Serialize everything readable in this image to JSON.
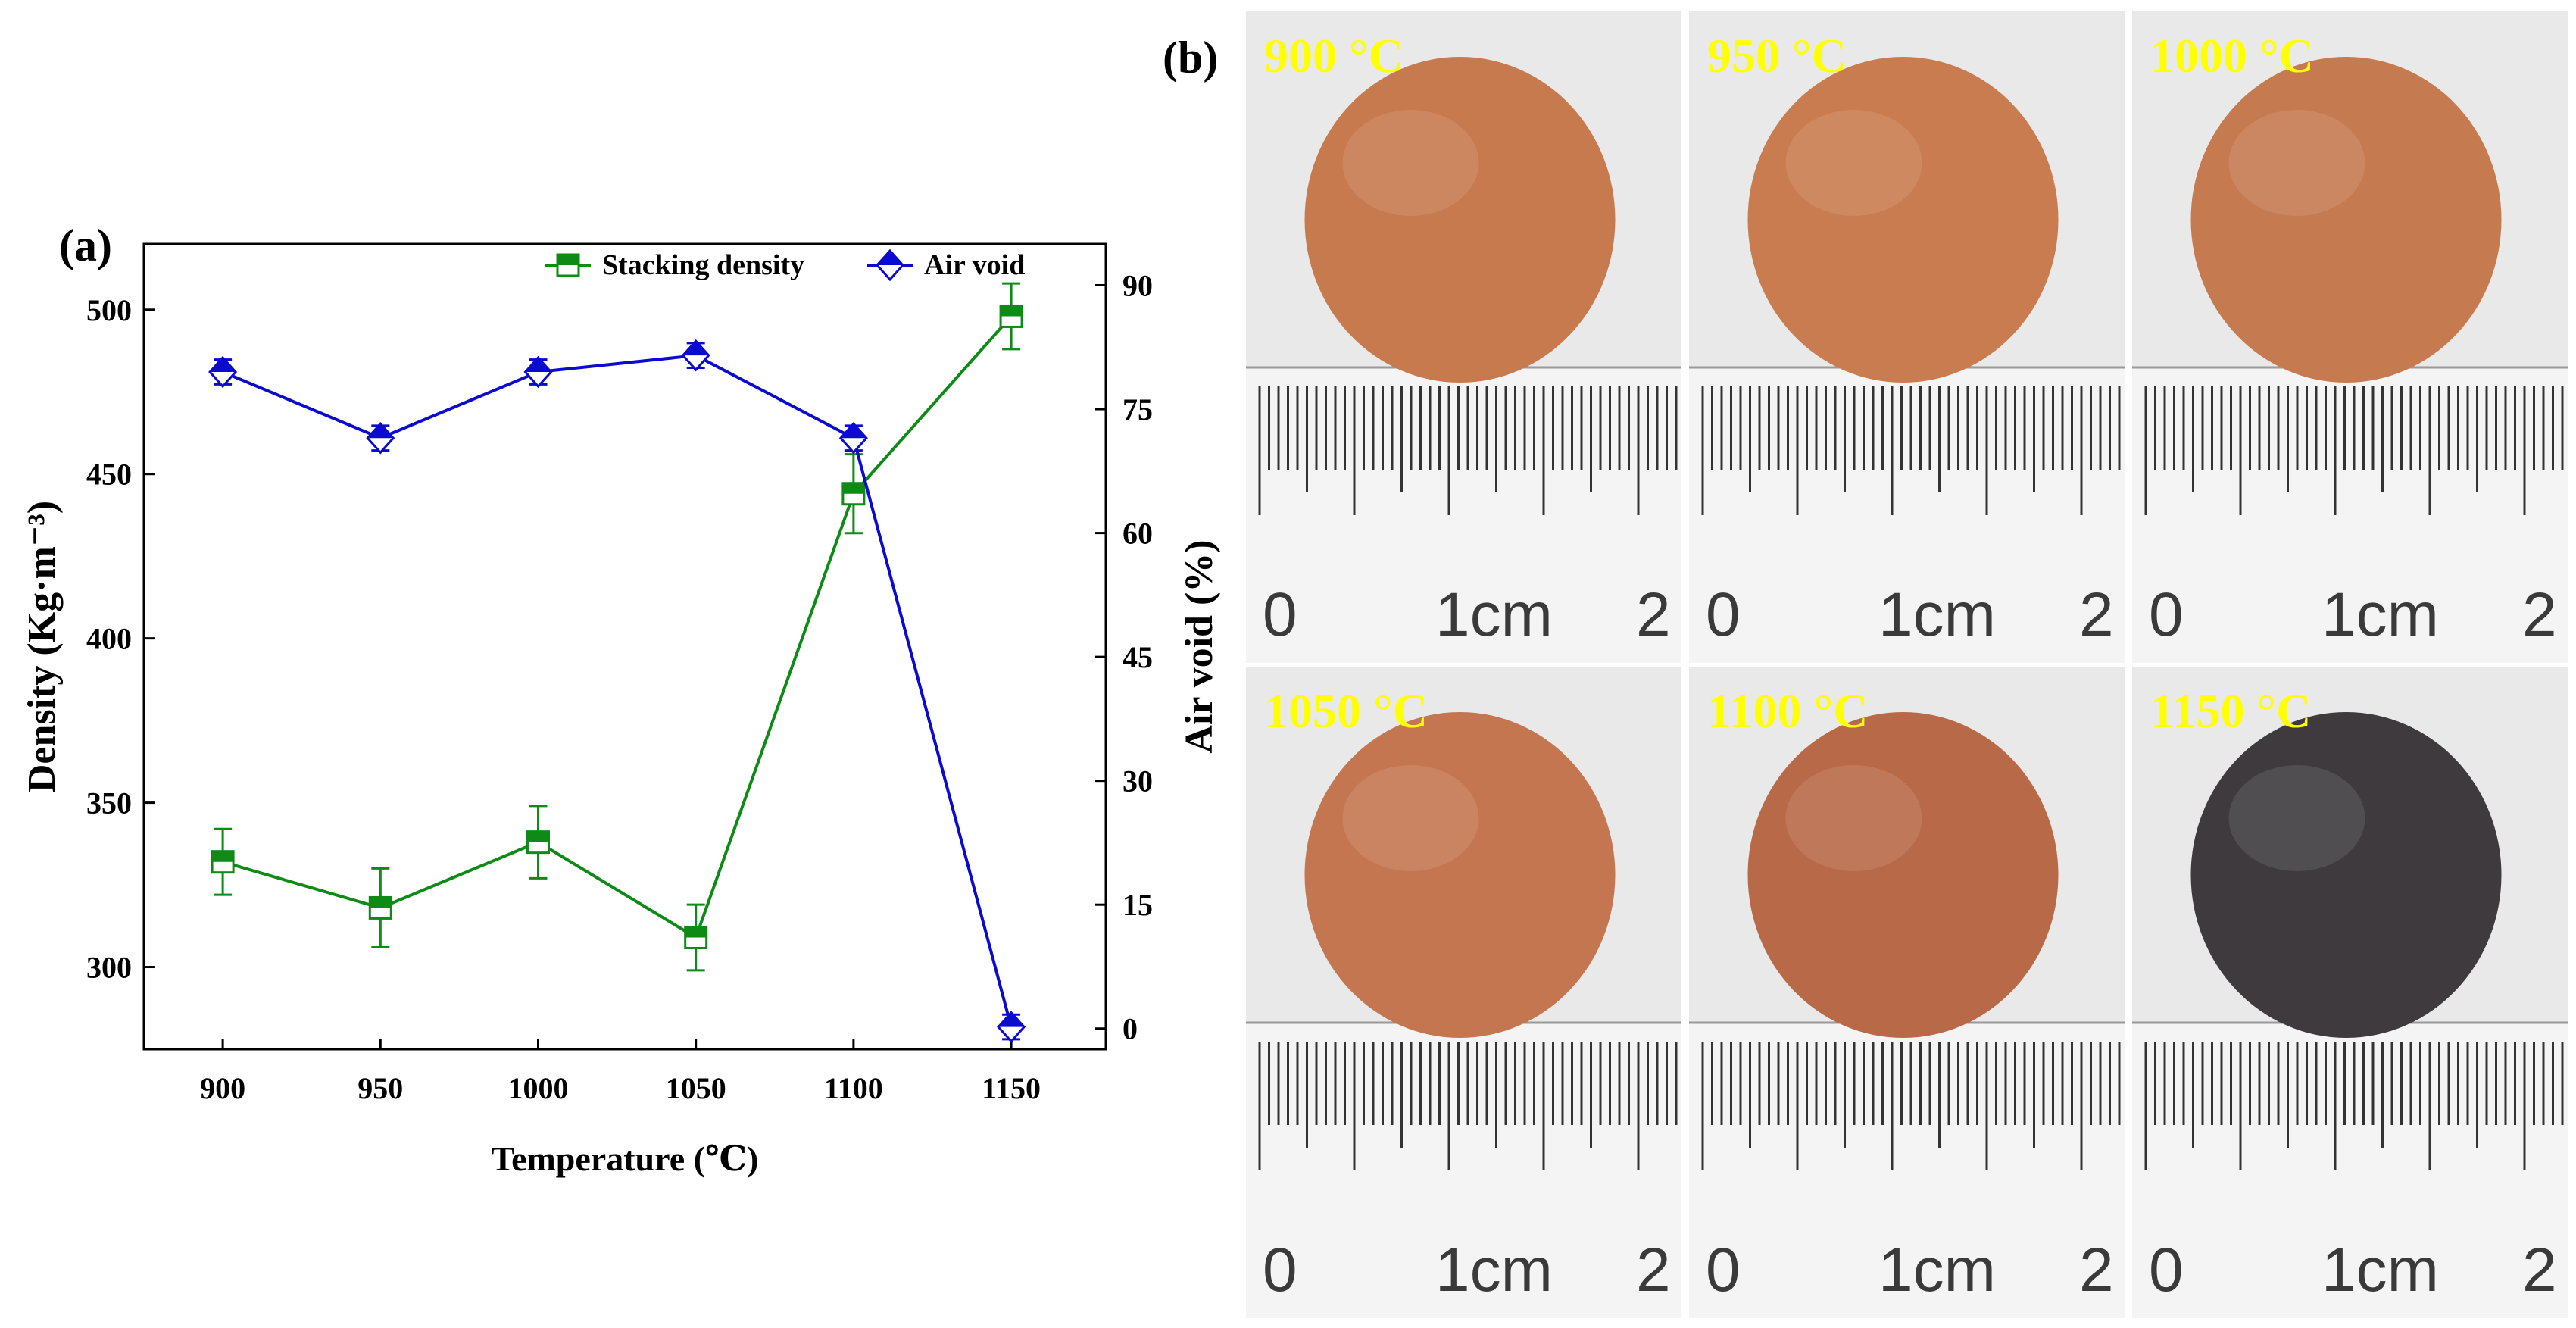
{
  "panel_a_label": "(a)",
  "panel_b_label": "(b)",
  "chart_data": {
    "type": "line",
    "title": "",
    "xlabel": "Temperature (℃)",
    "ylabel_left": "Density (Kg·m⁻³)",
    "ylabel_right": "Air void (%)",
    "x": [
      900,
      950,
      1000,
      1050,
      1100,
      1150
    ],
    "xlim": [
      875,
      1180
    ],
    "x_ticks": [
      900,
      950,
      1000,
      1050,
      1100,
      1150
    ],
    "ylim_left": [
      275,
      520
    ],
    "y_ticks_left": [
      300,
      350,
      400,
      450,
      500
    ],
    "ylim_right": [
      -2.5,
      95
    ],
    "y_ticks_right": [
      0,
      15,
      30,
      45,
      60,
      75,
      90
    ],
    "grid": false,
    "legend_position": "top-right",
    "series": [
      {
        "name": "Stacking density",
        "axis": "left",
        "color": "#0e8a16",
        "marker": "half-filled-square",
        "values": [
          332,
          318,
          338,
          309,
          444,
          498
        ],
        "errors": [
          10,
          12,
          11,
          10,
          12,
          10
        ]
      },
      {
        "name": "Air void",
        "axis": "right",
        "color": "#0a0ad0",
        "marker": "half-filled-diamond",
        "values": [
          79.5,
          71.5,
          79.5,
          81.5,
          71.5,
          0.2
        ],
        "errors": [
          1.5,
          1.5,
          1.5,
          1.5,
          1.5,
          1.5
        ]
      }
    ]
  },
  "photos": [
    {
      "label": "900 °C",
      "ball_color": "#c87a4f",
      "scale_text": [
        "0",
        "1cm",
        "2"
      ]
    },
    {
      "label": "950 °C",
      "ball_color": "#c97c50",
      "scale_text": [
        "0",
        "1cm",
        "2"
      ]
    },
    {
      "label": "1000 °C",
      "ball_color": "#c67a50",
      "scale_text": [
        "0",
        "1cm",
        "2"
      ]
    },
    {
      "label": "1050 °C",
      "ball_color": "#c47650",
      "scale_text": [
        "0",
        "1cm",
        "2"
      ]
    },
    {
      "label": "1100 °C",
      "ball_color": "#b86a48",
      "scale_text": [
        "0",
        "1cm",
        "2"
      ]
    },
    {
      "label": "1150 °C",
      "ball_color": "#3e3a3e",
      "scale_text": [
        "0",
        "1cm",
        "2"
      ]
    }
  ]
}
